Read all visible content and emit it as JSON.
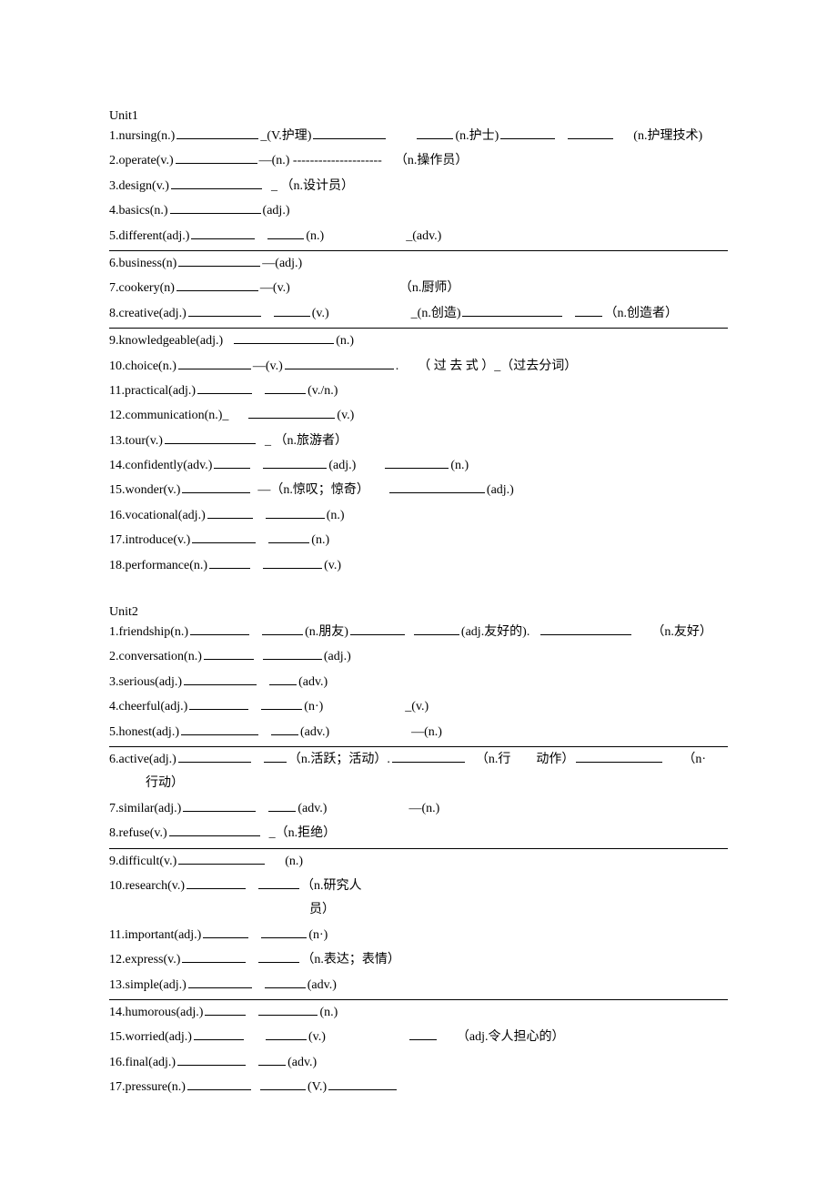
{
  "unit1": {
    "title": "Unit1",
    "items": [
      {
        "num": "1",
        "word": "nursing",
        "pos": "(n.)",
        "parts": [
          {
            "blank": 90
          },
          {
            "text": "_(V.护理)"
          },
          {
            "blank": 80
          },
          {
            "gap": 30
          },
          {
            "blank": 40
          },
          {
            "text": "(n.护士)"
          },
          {
            "blank": 60
          },
          {
            "gap": 10
          },
          {
            "blank": 50
          },
          {
            "gap": 20
          },
          {
            "text": "(n.护理技术)"
          }
        ]
      },
      {
        "num": "2",
        "word": "operate",
        "pos": "(v.)",
        "parts": [
          {
            "blank": 90
          },
          {
            "text": "—(n.) ---------------------"
          },
          {
            "gap": 14
          },
          {
            "text": "（n.操作员）"
          }
        ]
      },
      {
        "num": "3",
        "word": "design",
        "pos": "(v.)",
        "parts": [
          {
            "blank": 100
          },
          {
            "gap": 8
          },
          {
            "text": "_ （n.设计员）"
          }
        ]
      },
      {
        "num": "4",
        "word": "basics",
        "pos": "(n.)",
        "parts": [
          {
            "blank": 100
          },
          {
            "text": "(adj.)"
          }
        ]
      },
      {
        "num": "5",
        "word": "different",
        "pos": "(adj.)",
        "parts": [
          {
            "blank": 70
          },
          {
            "gap": 10
          },
          {
            "blank": 40
          },
          {
            "text": "(n.)"
          },
          {
            "gap": 90
          },
          {
            "text": "_(adv.)"
          }
        ]
      },
      {
        "hr": true,
        "num": "6",
        "word": "business",
        "pos": "(n)",
        "parts": [
          {
            "blank": 90
          },
          {
            "text": "—(adj.)"
          }
        ]
      },
      {
        "num": "7",
        "word": "cookery",
        "pos": "(n)",
        "parts": [
          {
            "blank": 90
          },
          {
            "text": "—(v.)"
          },
          {
            "gap": 120
          },
          {
            "text": "（n.厨师）"
          }
        ]
      },
      {
        "num": "8",
        "word": "creative",
        "pos": "(adj.)",
        "parts": [
          {
            "blank": 80
          },
          {
            "gap": 10
          },
          {
            "blank": 40
          },
          {
            "text": "(v.)"
          },
          {
            "gap": 90
          },
          {
            "text": "_(n.创造)"
          },
          {
            "blank": 110
          },
          {
            "gap": 10
          },
          {
            "blank": 30
          },
          {
            "text": "（n.创造者）"
          }
        ]
      },
      {
        "hr": true,
        "num": "9",
        "word": "knowledgeable",
        "pos": "(adj.)",
        "parts": [
          {
            "gap": 10
          },
          {
            "blank": 110
          },
          {
            "text": "(n.)"
          }
        ]
      },
      {
        "num": "10",
        "word": "choice",
        "pos": "(n.)",
        "parts": [
          {
            "blank": 80
          },
          {
            "text": "—(v.)"
          },
          {
            "blank": 120
          },
          {
            "text": ".　　（ 过 去 式  ）_（过去分词）"
          }
        ]
      },
      {
        "num": "11",
        "word": "practical",
        "pos": "(adj.)",
        "parts": [
          {
            "blank": 60
          },
          {
            "gap": 10
          },
          {
            "blank": 45
          },
          {
            "text": "(v./n.)"
          }
        ]
      },
      {
        "num": "12",
        "word": "communication",
        "pos": "(n.)",
        "parts": [
          {
            "text": "_"
          },
          {
            "gap": 20
          },
          {
            "blank": 95
          },
          {
            "text": "(v.)"
          }
        ]
      },
      {
        "num": "13",
        "word": "tour",
        "pos": "(v.)",
        "parts": [
          {
            "blank": 100
          },
          {
            "gap": 8
          },
          {
            "text": "_ （n.旅游者）"
          }
        ]
      },
      {
        "num": "14",
        "word": "confidently",
        "pos": "(adv.)",
        "parts": [
          {
            "blank": 40
          },
          {
            "gap": 10
          },
          {
            "blank": 70
          },
          {
            "text": "(adj.)"
          },
          {
            "gap": 30
          },
          {
            "blank": 70
          },
          {
            "text": "(n.)"
          }
        ]
      },
      {
        "num": "15",
        "word": "wonder",
        "pos": "(v.)",
        "parts": [
          {
            "blank": 75
          },
          {
            "gap": 6
          },
          {
            "text": "—（n.惊叹；惊奇）"
          },
          {
            "gap": 20
          },
          {
            "blank": 105
          },
          {
            "text": "(adj.)"
          }
        ]
      },
      {
        "num": "16",
        "word": "vocational",
        "pos": "(adj.)",
        "parts": [
          {
            "blank": 50
          },
          {
            "gap": 10
          },
          {
            "blank": 65
          },
          {
            "text": "(n.)"
          }
        ]
      },
      {
        "num": "17",
        "word": "introduce",
        "pos": "(v.)",
        "parts": [
          {
            "blank": 70
          },
          {
            "gap": 10
          },
          {
            "blank": 45
          },
          {
            "text": "(n.)"
          }
        ]
      },
      {
        "num": "18",
        "word": "performance",
        "pos": "(n.)",
        "parts": [
          {
            "blank": 45
          },
          {
            "gap": 10
          },
          {
            "blank": 65
          },
          {
            "text": "(v.)"
          }
        ]
      }
    ]
  },
  "unit2": {
    "title": "Unit2",
    "items": [
      {
        "num": "1",
        "word": "friendship",
        "pos": "(n.)",
        "parts": [
          {
            "blank": 65
          },
          {
            "gap": 10
          },
          {
            "blank": 45
          },
          {
            "text": "(n.朋友)"
          },
          {
            "blank": 60
          },
          {
            "gap": 6
          },
          {
            "blank": 50
          },
          {
            "text": "(adj.友好的)."
          },
          {
            "gap": 10
          },
          {
            "blank": 100
          },
          {
            "gap": 20
          },
          {
            "text": "（n.友好）"
          }
        ]
      },
      {
        "num": "2",
        "word": "conversation",
        "pos": "(n.)",
        "parts": [
          {
            "blank": 55
          },
          {
            "gap": 6
          },
          {
            "blank": 65
          },
          {
            "text": "(adj.)"
          }
        ]
      },
      {
        "num": "3",
        "word": "serious",
        "pos": "(adj.)",
        "parts": [
          {
            "blank": 80
          },
          {
            "gap": 10
          },
          {
            "blank": 30
          },
          {
            "text": "(adv.)"
          }
        ]
      },
      {
        "num": "4",
        "word": "cheerful",
        "pos": "(adj.)",
        "parts": [
          {
            "blank": 65
          },
          {
            "gap": 10
          },
          {
            "blank": 45
          },
          {
            "text": "(n·)"
          },
          {
            "gap": 90
          },
          {
            "text": "_(v.)"
          }
        ]
      },
      {
        "num": "5",
        "word": "honest",
        "pos": "(adj.)",
        "parts": [
          {
            "blank": 85
          },
          {
            "gap": 10
          },
          {
            "blank": 30
          },
          {
            "text": "(adv.)"
          },
          {
            "gap": 90
          },
          {
            "text": "—(n.)"
          }
        ]
      },
      {
        "hr": true,
        "num": "6",
        "word": "active",
        "pos": "(adj.)",
        "parts": [
          {
            "blank": 80
          },
          {
            "gap": 10
          },
          {
            "blank": 25
          },
          {
            "text": "（n.活跃；活动）."
          },
          {
            "blank": 80
          },
          {
            "gap": 10
          },
          {
            "text": "（n.行　　动作）"
          },
          {
            "blank": 95
          },
          {
            "gap": 20
          },
          {
            "text": "（n·"
          }
        ]
      },
      {
        "indent": true,
        "text": "行动）"
      },
      {
        "num": "7",
        "word": "similar",
        "pos": "(adj.)",
        "parts": [
          {
            "blank": 80
          },
          {
            "gap": 10
          },
          {
            "blank": 30
          },
          {
            "text": "(adv.)"
          },
          {
            "gap": 90
          },
          {
            "text": "—(n.)"
          }
        ]
      },
      {
        "num": "8",
        "word": "refuse",
        "pos": "(v.)",
        "parts": [
          {
            "blank": 100
          },
          {
            "gap": 8
          },
          {
            "text": "_（n.拒绝）"
          }
        ]
      },
      {
        "hr": true,
        "num": "9",
        "word": "difficult",
        "pos": "(v.)",
        "parts": [
          {
            "blank": 95
          },
          {
            "gap": 20
          },
          {
            "text": "(n.)"
          }
        ]
      },
      {
        "num": "10",
        "word": "research",
        "pos": "(v.)",
        "parts": [
          {
            "blank": 65
          },
          {
            "gap": 10
          },
          {
            "blank": 45
          },
          {
            "text": "（n.研究人"
          }
        ]
      },
      {
        "indent": true,
        "marginLeft": 220,
        "text": "员）"
      },
      {
        "num": "11",
        "word": "important",
        "pos": "(adj.)",
        "parts": [
          {
            "blank": 50
          },
          {
            "gap": 10
          },
          {
            "blank": 50
          },
          {
            "text": "(n·)"
          }
        ]
      },
      {
        "num": "12",
        "word": "express",
        "pos": "(v.)",
        "parts": [
          {
            "blank": 70
          },
          {
            "gap": 10
          },
          {
            "blank": 45
          },
          {
            "text": "（n.表达；表情）"
          }
        ]
      },
      {
        "num": "13",
        "word": "simple",
        "pos": "(adj.)",
        "parts": [
          {
            "blank": 70
          },
          {
            "gap": 10
          },
          {
            "blank": 45
          },
          {
            "text": "(adv.)"
          }
        ]
      },
      {
        "hr": true,
        "num": "14",
        "word": "humorous",
        "pos": "(adj.)",
        "parts": [
          {
            "blank": 45
          },
          {
            "gap": 10
          },
          {
            "blank": 65
          },
          {
            "text": "(n.)"
          }
        ]
      },
      {
        "num": "15",
        "word": "worried",
        "pos": "(adj.)",
        "parts": [
          {
            "blank": 55
          },
          {
            "gap": 20
          },
          {
            "blank": 45
          },
          {
            "text": "(v.)"
          },
          {
            "gap": 90
          },
          {
            "blank": 30
          },
          {
            "gap": 20
          },
          {
            "text": "（adj.令人担心的）"
          }
        ]
      },
      {
        "num": "16",
        "word": "final",
        "pos": "(adj.)",
        "parts": [
          {
            "blank": 75
          },
          {
            "gap": 10
          },
          {
            "blank": 30
          },
          {
            "text": "(adv.)"
          }
        ]
      },
      {
        "num": "17",
        "word": "pressure",
        "pos": "(n.)",
        "parts": [
          {
            "blank": 70
          },
          {
            "gap": 6
          },
          {
            "blank": 50
          },
          {
            "text": "(V.)"
          },
          {
            "blank": 75
          }
        ]
      }
    ]
  }
}
